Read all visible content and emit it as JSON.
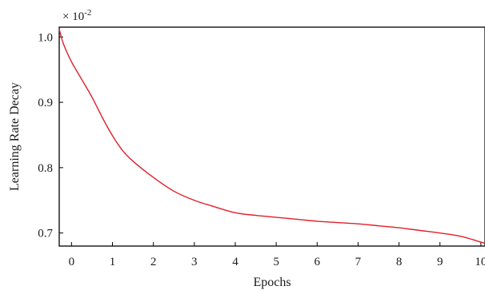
{
  "chart_data": {
    "type": "line",
    "title": "",
    "xlabel": "Epochs",
    "ylabel": "Learning Rate Decay",
    "scale_prefix": "× 10",
    "scale_exponent": "-2",
    "xlim": [
      -0.3,
      10.1
    ],
    "ylim": [
      0.68,
      1.015
    ],
    "x_ticks": [
      0,
      1,
      2,
      3,
      4,
      5,
      6,
      7,
      8,
      9,
      10
    ],
    "x_tick_labels": [
      "0",
      "1",
      "2",
      "3",
      "4",
      "5",
      "6",
      "7",
      "8",
      "9",
      "10"
    ],
    "y_ticks": [
      0.7,
      0.8,
      0.9,
      1.0
    ],
    "y_tick_labels": [
      "0.7",
      "0.8",
      "0.9",
      "1.0"
    ],
    "grid": false,
    "legend": "none",
    "series": [
      {
        "color": "#e0202a",
        "x": [
          -0.3,
          -0.2,
          0,
          0.25,
          0.5,
          0.75,
          1,
          1.25,
          1.5,
          2,
          2.5,
          3,
          3.5,
          4,
          4.5,
          5,
          5.5,
          6,
          6.5,
          7,
          7.5,
          8,
          8.5,
          9,
          9.5,
          10,
          10.1
        ],
        "y": [
          1.012,
          0.99,
          0.962,
          0.935,
          0.908,
          0.877,
          0.849,
          0.826,
          0.81,
          0.785,
          0.764,
          0.75,
          0.74,
          0.731,
          0.727,
          0.724,
          0.721,
          0.718,
          0.716,
          0.714,
          0.711,
          0.708,
          0.704,
          0.7,
          0.695,
          0.686,
          0.684
        ]
      }
    ]
  }
}
